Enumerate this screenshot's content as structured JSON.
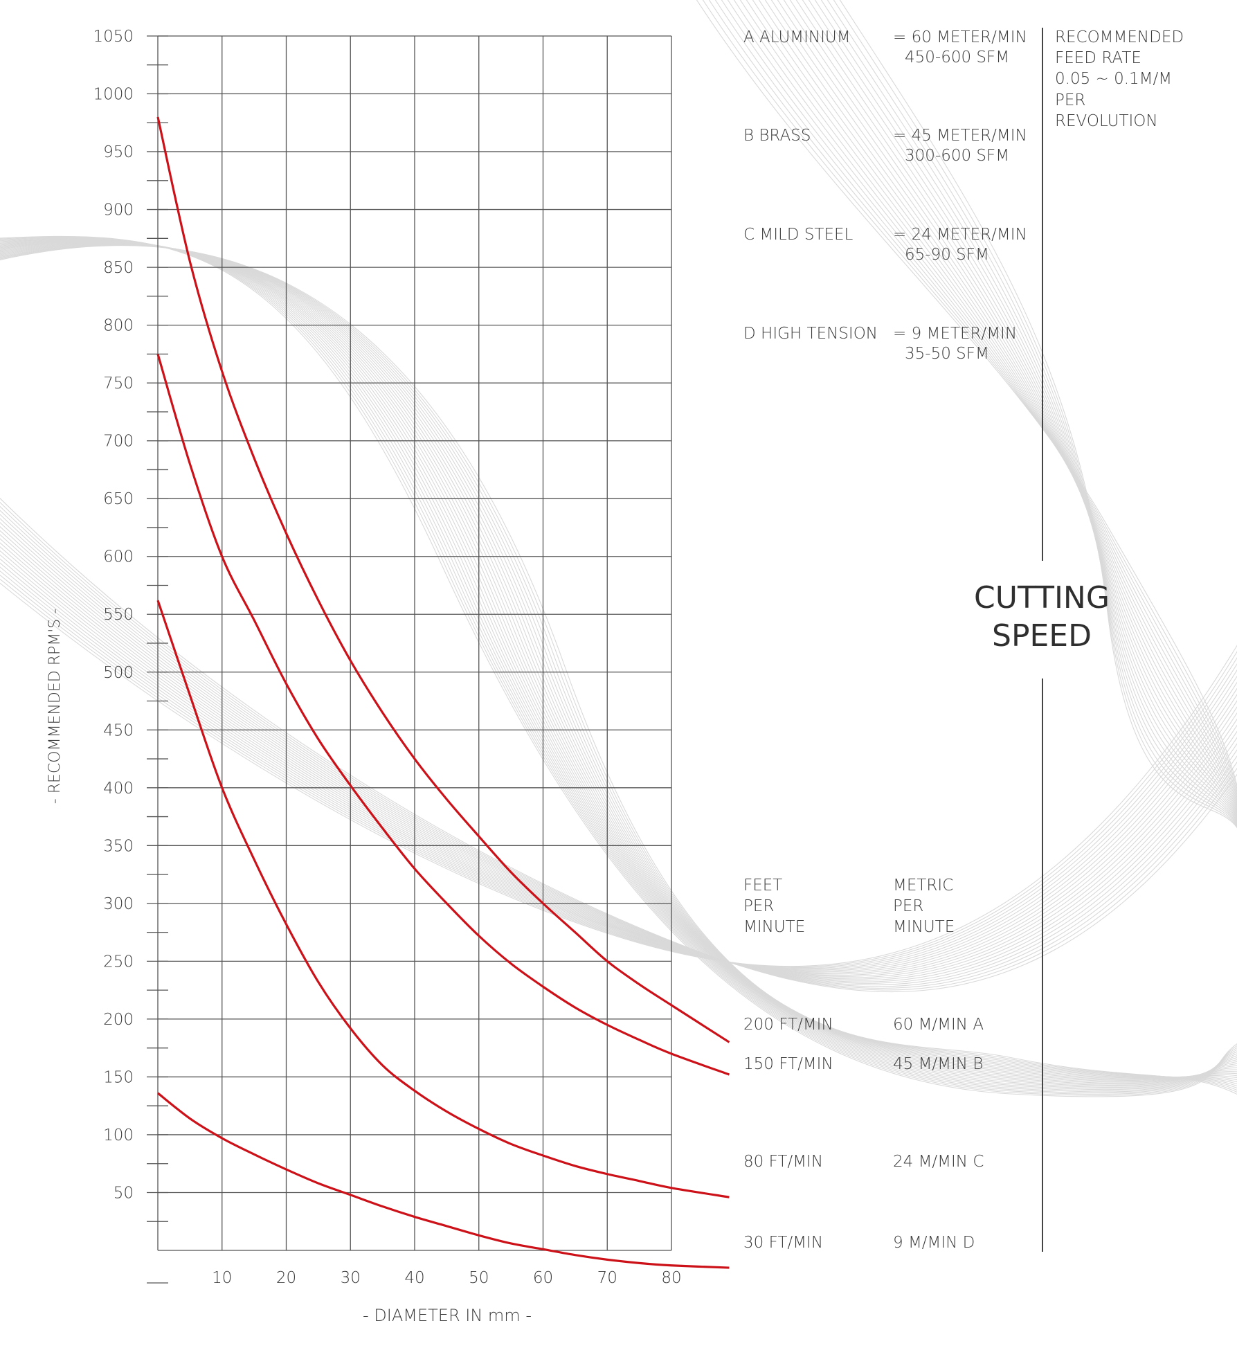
{
  "chart_data": {
    "type": "line",
    "xlabel": "- DIAMETER IN mm -",
    "ylabel": "- RECOMMENDED RPM'S -",
    "xlim": [
      0,
      80
    ],
    "ylim": [
      0,
      1050
    ],
    "x_ticks": [
      "10",
      "20",
      "30",
      "40",
      "50",
      "60",
      "70",
      "80"
    ],
    "y_ticks": [
      "50",
      "100",
      "150",
      "200",
      "250",
      "300",
      "350",
      "400",
      "450",
      "500",
      "550",
      "600",
      "650",
      "700",
      "750",
      "800",
      "850",
      "900",
      "950",
      "1000",
      "1050"
    ],
    "grid": true,
    "series": [
      {
        "name": "200 FT/MIN 60 M/MIN A",
        "x": [
          0,
          5,
          10,
          15,
          20,
          25,
          30,
          35,
          40,
          45,
          50,
          55,
          60,
          65,
          70,
          75,
          80,
          89
        ],
        "values": [
          980,
          855,
          760,
          685,
          620,
          562,
          510,
          465,
          425,
          390,
          358,
          327,
          300,
          275,
          250,
          230,
          212,
          180
        ]
      },
      {
        "name": "150 FT/MIN 45 M/MIN B",
        "x": [
          0,
          5,
          10,
          15,
          20,
          25,
          30,
          35,
          40,
          45,
          50,
          55,
          60,
          65,
          70,
          75,
          80,
          89
        ],
        "values": [
          775,
          680,
          600,
          545,
          490,
          442,
          402,
          365,
          330,
          300,
          272,
          248,
          228,
          210,
          195,
          182,
          170,
          152
        ]
      },
      {
        "name": "80 FT/MIN 24 M/MIN C",
        "x": [
          0,
          5,
          10,
          15,
          20,
          25,
          30,
          35,
          40,
          45,
          50,
          55,
          60,
          65,
          70,
          75,
          80,
          89
        ],
        "values": [
          562,
          480,
          400,
          338,
          282,
          232,
          192,
          160,
          138,
          120,
          105,
          92,
          82,
          73,
          66,
          60,
          54,
          46
        ]
      },
      {
        "name": "30 FT/MIN 9 M/MIN D",
        "x": [
          0,
          5,
          10,
          15,
          20,
          25,
          30,
          35,
          40,
          45,
          50,
          55,
          60,
          65,
          70,
          75,
          80,
          89
        ],
        "values": [
          136,
          114,
          97,
          83,
          70,
          58,
          48,
          38,
          29,
          21,
          13,
          6,
          1,
          -4,
          -8,
          -11,
          -13,
          -15
        ]
      }
    ],
    "colors": {
      "series": "#cc1119",
      "grid": "#555555",
      "background_waves": "#d9d9d9"
    }
  },
  "materials": [
    {
      "name": "A ALUMINIUM",
      "speed": "= 60 METER/MIN",
      "sfm": "450-600 SFM"
    },
    {
      "name": "B BRASS",
      "speed": "= 45 METER/MIN",
      "sfm": "300-600 SFM"
    },
    {
      "name": "C MILD STEEL",
      "speed": "= 24 METER/MIN",
      "sfm": "65-90 SFM"
    },
    {
      "name": "D HIGH TENSION",
      "speed": "= 9 METER/MIN",
      "sfm": "35-50 SFM"
    }
  ],
  "feed_rate": [
    "RECOMMENDED",
    "FEED RATE",
    "0.05 ~ 0.1M/M",
    "PER",
    "REVOLUTION"
  ],
  "title_lines": [
    "CUTTING",
    "SPEED"
  ],
  "column_headers": {
    "feet": [
      "FEET",
      "PER",
      "MINUTE"
    ],
    "metric": [
      "METRIC",
      "PER",
      "MINUTE"
    ]
  },
  "curve_labels": [
    {
      "feet": "200 FT/MIN",
      "metric": "60 M/MIN A"
    },
    {
      "feet": "150 FT/MIN",
      "metric": "45 M/MIN B"
    },
    {
      "feet": "80 FT/MIN",
      "metric": "24 M/MIN C"
    },
    {
      "feet": "30 FT/MIN",
      "metric": "9 M/MIN D"
    }
  ]
}
